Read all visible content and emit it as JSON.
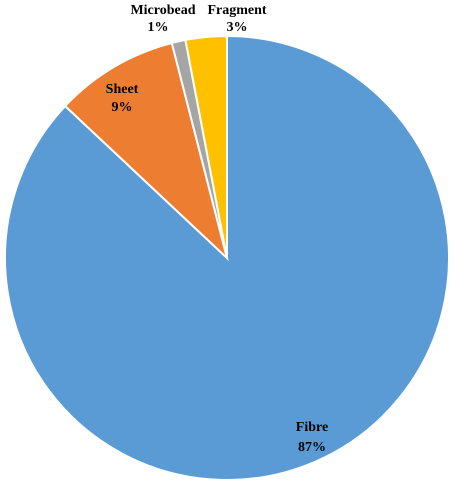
{
  "chart_data": {
    "type": "pie",
    "categories": [
      "Fibre",
      "Sheet",
      "Microbead",
      "Fragment"
    ],
    "values": [
      87,
      9,
      1,
      3
    ],
    "value_labels": [
      "87%",
      "9%",
      "1%",
      "3%"
    ],
    "colors": [
      "#5b9bd5",
      "#ed7d31",
      "#a5a5a5",
      "#ffc000"
    ]
  }
}
